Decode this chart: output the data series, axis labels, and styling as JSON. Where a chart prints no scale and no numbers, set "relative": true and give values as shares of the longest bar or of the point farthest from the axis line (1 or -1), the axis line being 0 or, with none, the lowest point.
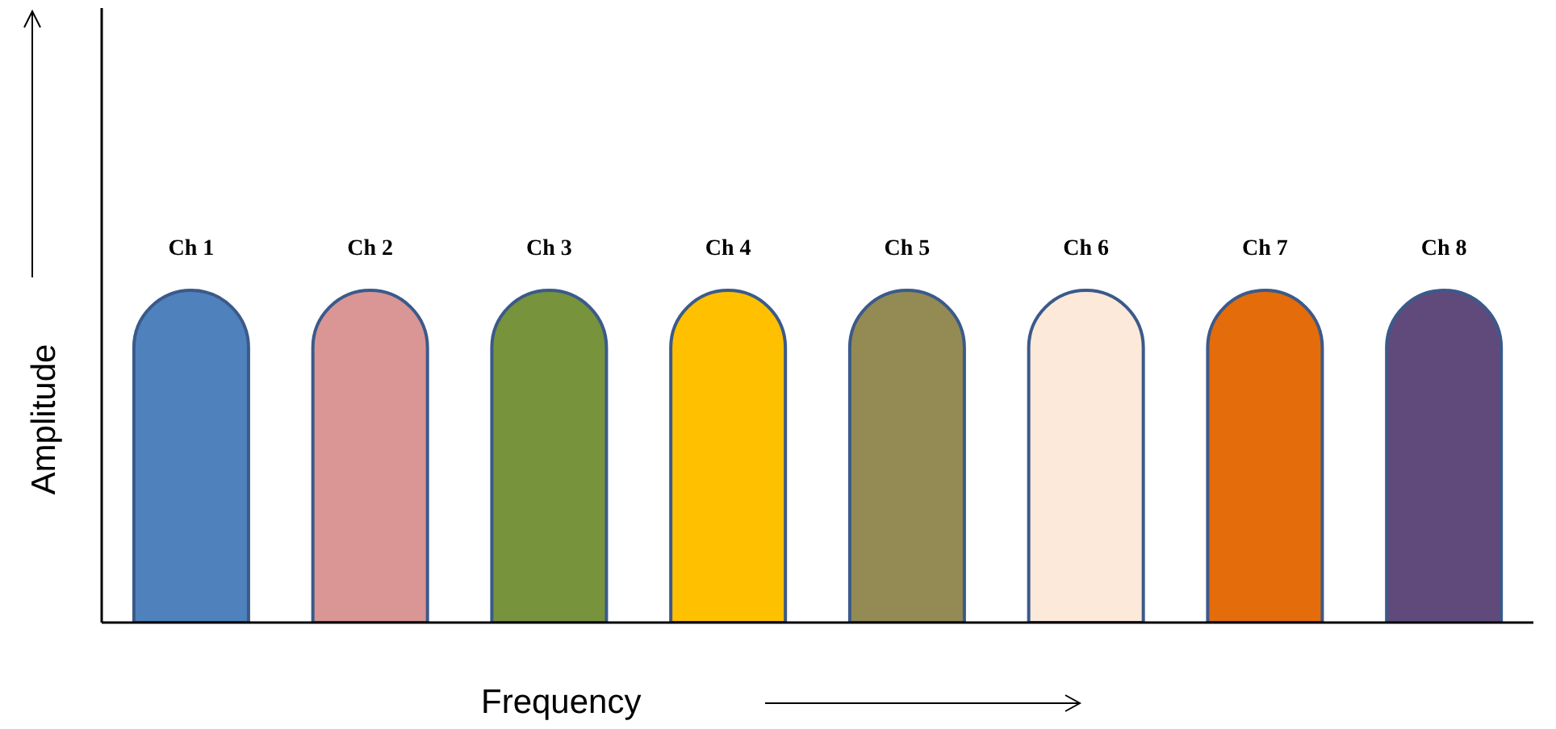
{
  "chart_data": {
    "type": "bar",
    "relative": true,
    "xlabel": "Frequency",
    "ylabel": "Amplitude",
    "categories": [
      "Ch 1",
      "Ch 2",
      "Ch 3",
      "Ch 4",
      "Ch 5",
      "Ch 6",
      "Ch 7",
      "Ch 8"
    ],
    "values": [
      1,
      1,
      1,
      1,
      1,
      1,
      1,
      1
    ],
    "colors": [
      "#4f81bd",
      "#d99694",
      "#77933c",
      "#ffc000",
      "#948a54",
      "#fde9d9",
      "#e46c0a",
      "#604a7b"
    ],
    "grid": false,
    "legend": false
  }
}
